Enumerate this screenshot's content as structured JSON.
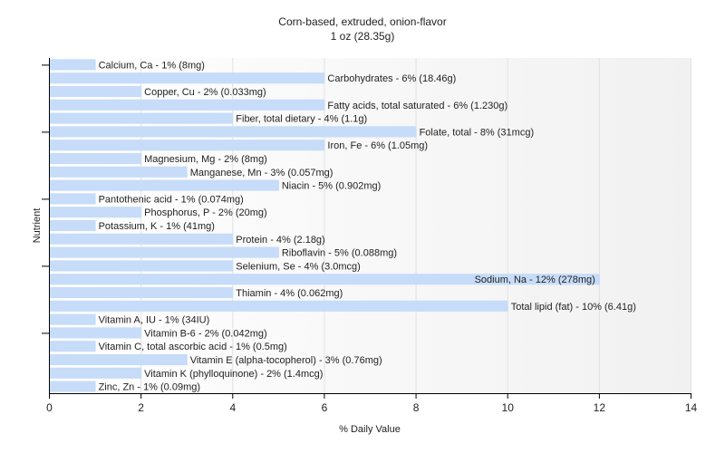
{
  "chart_data": {
    "type": "bar",
    "orientation": "horizontal",
    "title": "Corn-based, extruded, onion-flavor",
    "subtitle": "1 oz (28.35g)",
    "xlabel": "% Daily Value",
    "ylabel": "Nutrient",
    "xlim": [
      0,
      14
    ],
    "xticks": [
      0,
      2,
      4,
      6,
      8,
      10,
      12,
      14
    ],
    "grid": true,
    "bar_color": "#c6dcf8",
    "categories": [
      "Calcium, Ca",
      "Carbohydrates",
      "Copper, Cu",
      "Fatty acids, total saturated",
      "Fiber, total dietary",
      "Folate, total",
      "Iron, Fe",
      "Magnesium, Mg",
      "Manganese, Mn",
      "Niacin",
      "Pantothenic acid",
      "Phosphorus, P",
      "Potassium, K",
      "Protein",
      "Riboflavin",
      "Selenium, Se",
      "Sodium, Na",
      "Thiamin",
      "Total lipid (fat)",
      "Vitamin A, IU",
      "Vitamin B-6",
      "Vitamin C, total ascorbic acid",
      "Vitamin E (alpha-tocopherol)",
      "Vitamin K (phylloquinone)",
      "Zinc, Zn"
    ],
    "values": [
      1,
      6,
      2,
      6,
      4,
      8,
      6,
      2,
      3,
      5,
      1,
      2,
      1,
      4,
      5,
      4,
      12,
      4,
      10,
      1,
      2,
      1,
      3,
      2,
      1
    ],
    "labels": [
      "Calcium, Ca - 1% (8mg)",
      "Carbohydrates - 6% (18.46g)",
      "Copper, Cu - 2% (0.033mg)",
      "Fatty acids, total saturated - 6% (1.230g)",
      "Fiber, total dietary - 4% (1.1g)",
      "Folate, total - 8% (31mcg)",
      "Iron, Fe - 6% (1.05mg)",
      "Magnesium, Mg - 2% (8mg)",
      "Manganese, Mn - 3% (0.057mg)",
      "Niacin - 5% (0.902mg)",
      "Pantothenic acid - 1% (0.074mg)",
      "Phosphorus, P - 2% (20mg)",
      "Potassium, K - 1% (41mg)",
      "Protein - 4% (2.18g)",
      "Riboflavin - 5% (0.088mg)",
      "Selenium, Se - 4% (3.0mcg)",
      "Sodium, Na - 12% (278mg)",
      "Thiamin - 4% (0.062mg)",
      "Total lipid (fat) - 10% (6.41g)",
      "Vitamin A, IU - 1% (34IU)",
      "Vitamin B-6 - 2% (0.042mg)",
      "Vitamin C, total ascorbic acid - 1% (0.5mg)",
      "Vitamin E (alpha-tocopherol) - 3% (0.76mg)",
      "Vitamin K (phylloquinone) - 2% (1.4mcg)",
      "Zinc, Zn - 1% (0.09mg)"
    ]
  }
}
